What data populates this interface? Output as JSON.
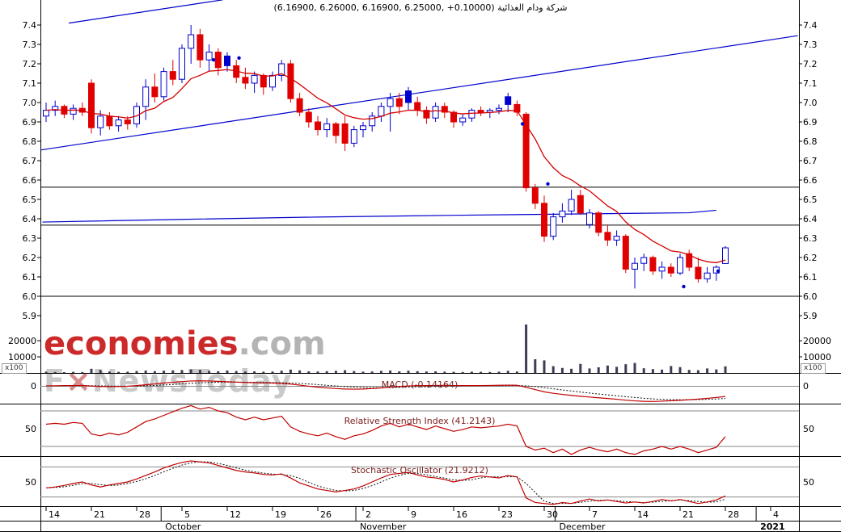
{
  "watermark": {
    "brand": "economies",
    "domain": ".com",
    "tagline_f": "F",
    "tagline_x": "×",
    "tagline_rest": "NewsToday"
  },
  "colors": {
    "candle_up": "#0000cd",
    "candle_down": "#e10000",
    "ma_line": "#d40000",
    "trendline": "#0000cc",
    "indicator_line": "#c00000",
    "signal_line": "#111111",
    "panel_title": "#7c2020",
    "watermark_red": "#cc2a2a",
    "watermark_gray": "#b4b4b4"
  },
  "chart_data": {
    "type": "candlestick",
    "title": "(6.16900, 6.26000, 6.16900, 6.25000, +0.10000) شركة ودام الغذائية",
    "quote": {
      "open": 6.169,
      "high": 6.26,
      "low": 6.169,
      "close": 6.25,
      "change": 0.1
    },
    "price_axis": {
      "min": 5.9,
      "max": 7.4,
      "ticks": [
        7.4,
        7.3,
        7.2,
        7.1,
        7.0,
        6.9,
        6.8,
        6.7,
        6.6,
        6.5,
        6.4,
        6.3,
        6.2,
        6.1,
        6.0,
        5.9
      ]
    },
    "x_ticks": [
      {
        "label": "14",
        "d": 0
      },
      {
        "label": "21",
        "d": 5
      },
      {
        "label": "28",
        "d": 10
      },
      {
        "label": "5",
        "d": 15
      },
      {
        "label": "12",
        "d": 20
      },
      {
        "label": "19",
        "d": 25
      },
      {
        "label": "26",
        "d": 30
      },
      {
        "label": "2",
        "d": 35
      },
      {
        "label": "9",
        "d": 40
      },
      {
        "label": "16",
        "d": 45
      },
      {
        "label": "23",
        "d": 50
      },
      {
        "label": "30",
        "d": 55
      },
      {
        "label": "7",
        "d": 60
      },
      {
        "label": "14",
        "d": 65
      },
      {
        "label": "21",
        "d": 70
      },
      {
        "label": "28",
        "d": 75
      },
      {
        "label": "4",
        "d": 80
      }
    ],
    "months": [
      {
        "label": "October",
        "d": 12.7
      },
      {
        "label": "November",
        "d": 34.2
      },
      {
        "label": "December",
        "d": 56.2
      },
      {
        "label": "2021",
        "d": 78.4
      }
    ],
    "candles": [
      [
        6.93,
        7.0,
        6.9,
        6.96
      ],
      [
        6.96,
        7.01,
        6.93,
        6.98
      ],
      [
        6.98,
        6.99,
        6.92,
        6.94
      ],
      [
        6.94,
        6.99,
        6.91,
        6.97
      ],
      [
        6.97,
        7.0,
        6.93,
        6.95
      ],
      [
        7.1,
        7.12,
        6.84,
        6.87
      ],
      [
        6.87,
        6.96,
        6.83,
        6.93
      ],
      [
        6.93,
        6.95,
        6.86,
        6.88
      ],
      [
        6.88,
        6.93,
        6.85,
        6.91
      ],
      [
        6.91,
        6.93,
        6.86,
        6.89
      ],
      [
        6.89,
        7.0,
        6.87,
        6.98
      ],
      [
        6.98,
        7.12,
        6.91,
        7.08
      ],
      [
        7.08,
        7.15,
        7.0,
        7.03
      ],
      [
        7.03,
        7.18,
        7.01,
        7.16
      ],
      [
        7.16,
        7.22,
        7.09,
        7.12
      ],
      [
        7.12,
        7.3,
        7.1,
        7.28
      ],
      [
        7.28,
        7.4,
        7.2,
        7.35
      ],
      [
        7.35,
        7.38,
        7.18,
        7.22
      ],
      [
        7.22,
        7.3,
        7.16,
        7.26
      ],
      [
        7.26,
        7.28,
        7.14,
        7.18
      ],
      [
        7.24,
        7.26,
        7.16,
        7.19
      ],
      [
        7.19,
        7.22,
        7.1,
        7.13
      ],
      [
        7.13,
        7.18,
        7.07,
        7.1
      ],
      [
        7.1,
        7.16,
        7.05,
        7.14
      ],
      [
        7.14,
        7.15,
        7.04,
        7.08
      ],
      [
        7.08,
        7.16,
        7.06,
        7.14
      ],
      [
        7.14,
        7.22,
        7.11,
        7.2
      ],
      [
        7.2,
        7.22,
        7.0,
        7.02
      ],
      [
        7.02,
        7.05,
        6.93,
        6.95
      ],
      [
        6.95,
        6.97,
        6.87,
        6.9
      ],
      [
        6.9,
        6.93,
        6.83,
        6.86
      ],
      [
        6.86,
        6.92,
        6.82,
        6.89
      ],
      [
        6.89,
        6.9,
        6.79,
        6.83
      ],
      [
        6.89,
        6.93,
        6.75,
        6.79
      ],
      [
        6.79,
        6.88,
        6.77,
        6.86
      ],
      [
        6.86,
        6.9,
        6.82,
        6.88
      ],
      [
        6.88,
        6.95,
        6.85,
        6.93
      ],
      [
        6.93,
        7.0,
        6.9,
        6.98
      ],
      [
        6.98,
        7.05,
        6.85,
        7.02
      ],
      [
        7.02,
        7.05,
        6.94,
        6.98
      ],
      [
        7.06,
        7.08,
        6.96,
        7.0
      ],
      [
        7.0,
        7.03,
        6.93,
        6.96
      ],
      [
        6.96,
        6.98,
        6.89,
        6.92
      ],
      [
        6.92,
        7.0,
        6.9,
        6.98
      ],
      [
        6.98,
        7.0,
        6.92,
        6.95
      ],
      [
        6.95,
        6.96,
        6.87,
        6.9
      ],
      [
        6.9,
        6.94,
        6.88,
        6.92
      ],
      [
        6.92,
        6.97,
        6.9,
        6.96
      ],
      [
        6.96,
        6.98,
        6.93,
        6.95
      ],
      [
        6.95,
        6.97,
        6.92,
        6.96
      ],
      [
        6.96,
        6.99,
        6.94,
        6.97
      ],
      [
        7.03,
        7.05,
        6.95,
        6.99
      ],
      [
        6.99,
        7.01,
        6.93,
        6.95
      ],
      [
        6.94,
        6.95,
        6.54,
        6.56
      ],
      [
        6.56,
        6.58,
        6.45,
        6.48
      ],
      [
        6.48,
        6.52,
        6.28,
        6.31
      ],
      [
        6.31,
        6.43,
        6.29,
        6.41
      ],
      [
        6.41,
        6.48,
        6.38,
        6.44
      ],
      [
        6.44,
        6.55,
        6.42,
        6.5
      ],
      [
        6.52,
        6.55,
        6.42,
        6.43
      ],
      [
        6.37,
        6.45,
        6.35,
        6.43
      ],
      [
        6.43,
        6.44,
        6.31,
        6.33
      ],
      [
        6.33,
        6.37,
        6.26,
        6.29
      ],
      [
        6.29,
        6.34,
        6.26,
        6.31
      ],
      [
        6.31,
        6.32,
        6.12,
        6.14
      ],
      [
        6.14,
        6.2,
        6.04,
        6.17
      ],
      [
        6.17,
        6.22,
        6.13,
        6.2
      ],
      [
        6.2,
        6.21,
        6.11,
        6.13
      ],
      [
        6.13,
        6.18,
        6.09,
        6.15
      ],
      [
        6.15,
        6.17,
        6.1,
        6.12
      ],
      [
        6.12,
        6.22,
        6.11,
        6.2
      ],
      [
        6.22,
        6.24,
        6.13,
        6.15
      ],
      [
        6.15,
        6.2,
        6.07,
        6.09
      ],
      [
        6.09,
        6.15,
        6.07,
        6.12
      ],
      [
        6.12,
        6.16,
        6.08,
        6.15
      ],
      [
        6.169,
        6.26,
        6.169,
        6.25
      ]
    ],
    "volume": {
      "unit": "x100",
      "ticks": [
        10000,
        20000
      ],
      "values": [
        800,
        600,
        500,
        700,
        600,
        2600,
        1800,
        900,
        700,
        800,
        1200,
        1500,
        1100,
        1400,
        1600,
        1800,
        2200,
        1900,
        1300,
        1100,
        1500,
        1200,
        900,
        1000,
        800,
        900,
        1400,
        2100,
        1600,
        1000,
        900,
        1100,
        1300,
        1700,
        1200,
        800,
        900,
        1300,
        1500,
        1000,
        1400,
        1100,
        900,
        1000,
        800,
        700,
        600,
        800,
        700,
        600,
        800,
        1300,
        900,
        30000,
        8500,
        7800,
        4200,
        3100,
        2600,
        5600,
        2800,
        3500,
        4600,
        3800,
        5400,
        6200,
        2900,
        2400,
        2100,
        4300,
        3600,
        1900,
        1700,
        2800,
        2200,
        4100
      ]
    },
    "overlays": {
      "hlines": [
        6.563,
        6.367,
        6.0
      ],
      "trendlines": [
        [
          -0.6,
          6.755,
          83,
          7.345
        ],
        [
          2.5,
          7.41,
          19.5,
          7.53
        ]
      ],
      "blue_line": [
        [
          -0.4,
          6.383
        ],
        [
          15,
          6.397
        ],
        [
          30,
          6.409
        ],
        [
          45,
          6.418
        ],
        [
          55,
          6.423
        ],
        [
          65,
          6.428
        ],
        [
          71,
          6.431
        ],
        [
          74,
          6.444
        ]
      ],
      "dots": [
        [
          18.5,
          7.22
        ],
        [
          21.3,
          7.23
        ],
        [
          52.6,
          6.89
        ],
        [
          55.4,
          6.58
        ],
        [
          70.4,
          6.05
        ],
        [
          74.2,
          6.13
        ]
      ]
    },
    "indicators": [
      {
        "name": "macd",
        "title": "MACD (-0.14164)",
        "value": -0.14164,
        "axis_label": "0",
        "values": [
          0.0,
          0.002,
          0.004,
          0.005,
          0.006,
          -0.002,
          -0.008,
          -0.01,
          -0.008,
          -0.005,
          0.004,
          0.015,
          0.026,
          0.038,
          0.048,
          0.058,
          0.066,
          0.068,
          0.066,
          0.061,
          0.056,
          0.051,
          0.046,
          0.043,
          0.04,
          0.038,
          0.034,
          0.024,
          0.01,
          -0.005,
          -0.018,
          -0.028,
          -0.036,
          -0.042,
          -0.044,
          -0.042,
          -0.036,
          -0.027,
          -0.016,
          -0.008,
          -0.001,
          0.003,
          0.004,
          0.006,
          0.007,
          0.005,
          0.004,
          0.004,
          0.005,
          0.006,
          0.008,
          0.01,
          0.009,
          -0.02,
          -0.05,
          -0.08,
          -0.1,
          -0.115,
          -0.128,
          -0.14,
          -0.15,
          -0.16,
          -0.17,
          -0.18,
          -0.192,
          -0.202,
          -0.208,
          -0.21,
          -0.206,
          -0.2,
          -0.194,
          -0.186,
          -0.178,
          -0.168,
          -0.156,
          -0.142
        ]
      },
      {
        "name": "rsi",
        "title": "Relative Strength Index (41.2143)",
        "value": 41.2143,
        "axis_label": "50",
        "levels": [
          30,
          70
        ],
        "values": [
          55,
          56,
          55,
          57,
          56,
          44,
          42,
          45,
          43,
          46,
          52,
          58,
          61,
          65,
          69,
          73,
          76,
          72,
          74,
          70,
          68,
          63,
          60,
          63,
          60,
          62,
          64,
          52,
          47,
          44,
          42,
          45,
          41,
          38,
          42,
          44,
          48,
          53,
          56,
          52,
          55,
          52,
          49,
          53,
          50,
          47,
          49,
          52,
          51,
          52,
          53,
          55,
          53,
          30,
          26,
          28,
          23,
          27,
          21,
          26,
          29,
          26,
          24,
          27,
          23,
          21,
          25,
          27,
          30,
          27,
          30,
          27,
          23,
          26,
          29,
          41
        ]
      },
      {
        "name": "stochastic",
        "title": "Stochastic Oscillator (21.9212)",
        "value": 21.9212,
        "axis_label": "50",
        "levels": [
          20,
          80
        ],
        "values": [
          38,
          40,
          43,
          47,
          50,
          44,
          40,
          44,
          47,
          50,
          56,
          63,
          70,
          78,
          84,
          89,
          92,
          90,
          88,
          83,
          78,
          73,
          70,
          68,
          65,
          64,
          66,
          58,
          48,
          42,
          36,
          33,
          30,
          33,
          36,
          42,
          50,
          58,
          65,
          67,
          69,
          64,
          60,
          58,
          55,
          50,
          54,
          59,
          62,
          60,
          58,
          63,
          60,
          18,
          9,
          7,
          5,
          9,
          7,
          12,
          16,
          12,
          14,
          11,
          8,
          10,
          8,
          11,
          15,
          12,
          15,
          11,
          7,
          10,
          14,
          22
        ]
      }
    ]
  }
}
